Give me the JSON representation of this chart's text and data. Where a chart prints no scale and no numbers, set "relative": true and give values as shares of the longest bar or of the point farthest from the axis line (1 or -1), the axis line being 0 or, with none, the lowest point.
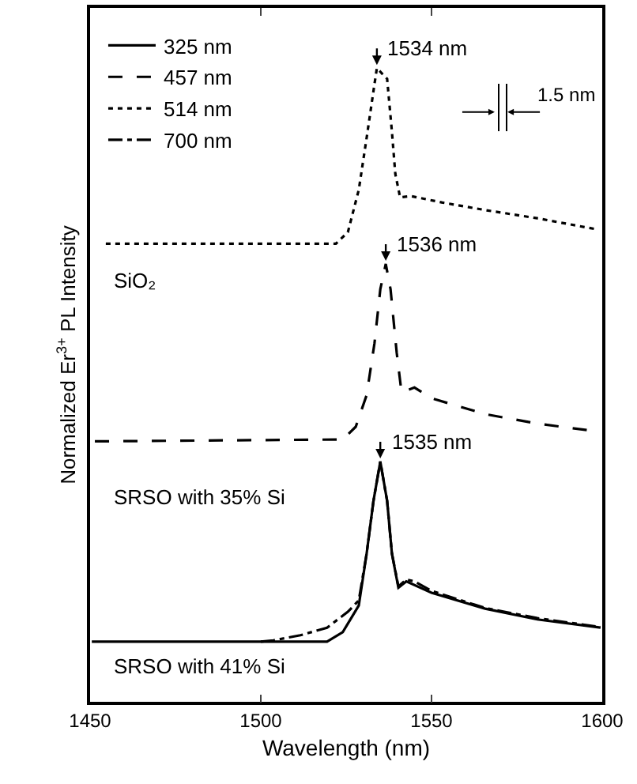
{
  "chart_data": {
    "type": "line",
    "relative": true,
    "xlabel": "Wavelength (nm)",
    "ylabel": "Normalized Er$^{3+}$ PL Intensity",
    "xlim": [
      1450,
      1600
    ],
    "xticks": [
      1450,
      1500,
      1550,
      1600
    ],
    "legend": "top left",
    "grid": false,
    "marker": "none",
    "series": [
      {
        "name": "325 nm",
        "color": "#000000",
        "line_style": "solid",
        "x": [
          1450.5,
          1519.4,
          1524,
          1528.7,
          1531,
          1533,
          1535,
          1537,
          1538.4,
          1540.3,
          1542.6,
          1550,
          1565.7,
          1581,
          1599.5
        ],
        "values": [
          0.095,
          0.095,
          0.11,
          0.152,
          0.234,
          0.317,
          0.379,
          0.317,
          0.234,
          0.18,
          0.19,
          0.172,
          0.147,
          0.13,
          0.117
        ]
      },
      {
        "name": "457 nm",
        "color": "#000000",
        "line_style": "dashed",
        "x": [
          1451.4,
          1524,
          1527.8,
          1531,
          1533.3,
          1535,
          1536.6,
          1538,
          1539.8,
          1541.2,
          1542.6,
          1545,
          1550,
          1565.7,
          1581,
          1599.5
        ],
        "values": [
          0.411,
          0.414,
          0.434,
          0.484,
          0.566,
          0.651,
          0.691,
          0.651,
          0.551,
          0.489,
          0.491,
          0.496,
          0.479,
          0.454,
          0.439,
          0.426
        ]
      },
      {
        "name": "514 nm",
        "color": "#000000",
        "line_style": "dotted",
        "x": [
          1454.6,
          1522,
          1525.5,
          1528.7,
          1531,
          1533.3,
          1534,
          1537,
          1538.4,
          1539.4,
          1540.8,
          1544,
          1553,
          1565.7,
          1581,
          1598
        ],
        "values": [
          0.723,
          0.723,
          0.741,
          0.808,
          0.89,
          0.975,
          1.0,
          0.983,
          0.9,
          0.833,
          0.796,
          0.798,
          0.788,
          0.776,
          0.763,
          0.746
        ]
      },
      {
        "name": "700 nm",
        "color": "#000000",
        "line_style": "dashdot",
        "x": [
          1500,
          1503.7,
          1511.6,
          1519.4,
          1525.5,
          1528.7,
          1531,
          1533,
          1535,
          1537,
          1538.4,
          1540.3,
          1542.6,
          1545,
          1550,
          1565.7,
          1581,
          1599.5
        ],
        "values": [
          0.095,
          0.097,
          0.105,
          0.117,
          0.142,
          0.16,
          0.234,
          0.317,
          0.379,
          0.317,
          0.234,
          0.182,
          0.193,
          0.19,
          0.175,
          0.148,
          0.132,
          0.118
        ]
      }
    ],
    "annotations": [
      {
        "text": "1534 nm",
        "x": 1534,
        "y": 1.0
      },
      {
        "text": "1536 nm",
        "x": 1536.6,
        "y": 0.691
      },
      {
        "text": "1535 nm",
        "x": 1535,
        "y": 0.379
      },
      "1.5 nm",
      "SiO₂",
      "SRSO with 35% Si",
      "SRSO with 41% Si"
    ]
  }
}
